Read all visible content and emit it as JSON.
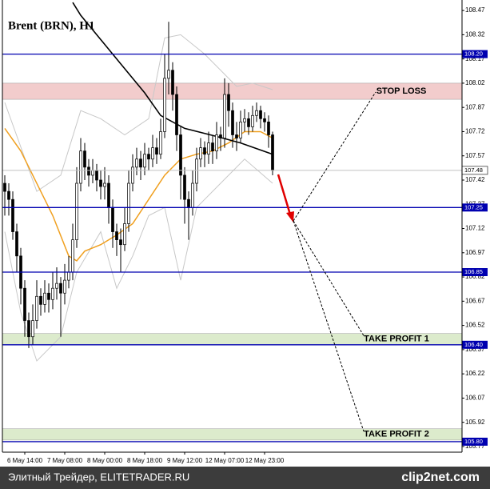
{
  "chart_data": {
    "type": "candlestick",
    "title": "Brent (BRN), H1",
    "categories": [
      null,
      null,
      null,
      null,
      null,
      "6 May 14:00",
      null,
      null,
      null,
      null,
      null,
      null,
      null,
      null,
      null,
      "7 May 08:00",
      null,
      null,
      null,
      null,
      null,
      null,
      null,
      null,
      null,
      "8 May 00:00",
      null,
      null,
      null,
      null,
      null,
      null,
      null,
      null,
      null,
      "8 May 18:00",
      null,
      null,
      null,
      null,
      null,
      null,
      null,
      null,
      null,
      "9 May 12:00",
      null,
      null,
      null,
      null,
      null,
      null,
      null,
      null,
      null,
      "12 May 07:00",
      null,
      null,
      null,
      null,
      null,
      null,
      null,
      null,
      null,
      "12 May 23:00",
      null,
      null
    ],
    "open": [
      107.4,
      107.35,
      107.3,
      107.1,
      106.95,
      106.75,
      106.55,
      106.45,
      106.55,
      106.7,
      106.65,
      106.72,
      106.68,
      106.75,
      106.78,
      106.72,
      106.8,
      106.85,
      107.05,
      107.4,
      107.6,
      107.5,
      107.45,
      107.48,
      107.42,
      107.38,
      107.4,
      107.25,
      107.1,
      107.05,
      107.02,
      107.15,
      107.4,
      107.5,
      107.55,
      107.5,
      107.58,
      107.55,
      107.62,
      107.58,
      107.72,
      108.05,
      108.1,
      107.95,
      107.7,
      107.45,
      107.3,
      107.25,
      107.4,
      107.55,
      107.62,
      107.58,
      107.65,
      107.6,
      107.7,
      107.68,
      107.95,
      107.85,
      107.7,
      107.68,
      107.78,
      107.8,
      107.75,
      107.82,
      107.85,
      107.8,
      107.78,
      107.7
    ],
    "high": [
      107.45,
      107.4,
      107.35,
      107.15,
      107.0,
      106.8,
      106.6,
      106.65,
      106.8,
      106.75,
      106.8,
      106.78,
      106.85,
      106.88,
      106.82,
      106.9,
      106.95,
      107.15,
      107.5,
      107.68,
      107.65,
      107.55,
      107.55,
      107.52,
      107.48,
      107.5,
      107.45,
      107.3,
      107.15,
      107.12,
      107.25,
      107.48,
      107.58,
      107.62,
      107.6,
      107.65,
      107.62,
      107.7,
      107.68,
      107.8,
      108.2,
      108.4,
      108.15,
      108.0,
      107.75,
      107.5,
      107.35,
      107.48,
      107.62,
      107.68,
      107.66,
      107.72,
      107.7,
      107.78,
      107.75,
      108.05,
      108.02,
      107.9,
      107.78,
      107.85,
      107.86,
      107.84,
      107.88,
      107.9,
      107.88,
      107.84,
      107.82,
      107.72
    ],
    "low": [
      107.2,
      107.2,
      107.05,
      106.85,
      106.65,
      106.45,
      106.38,
      106.4,
      106.5,
      106.58,
      106.6,
      106.6,
      106.62,
      106.68,
      106.45,
      106.65,
      106.75,
      106.8,
      107.0,
      107.35,
      107.42,
      107.38,
      107.4,
      107.35,
      107.3,
      107.3,
      107.15,
      107.0,
      106.95,
      106.85,
      106.98,
      107.1,
      107.35,
      107.45,
      107.42,
      107.45,
      107.48,
      107.5,
      107.52,
      107.55,
      107.68,
      107.95,
      107.85,
      107.6,
      107.3,
      107.15,
      107.05,
      107.2,
      107.35,
      107.5,
      107.5,
      107.52,
      107.52,
      107.55,
      107.6,
      107.62,
      107.75,
      107.62,
      107.6,
      107.65,
      107.72,
      107.7,
      107.72,
      107.78,
      107.74,
      107.72,
      107.62,
      107.45
    ],
    "close": [
      107.35,
      107.3,
      107.1,
      106.95,
      106.75,
      106.55,
      106.45,
      106.55,
      106.7,
      106.65,
      106.72,
      106.68,
      106.75,
      106.78,
      106.72,
      106.8,
      106.85,
      107.05,
      107.4,
      107.6,
      107.5,
      107.45,
      107.48,
      107.42,
      107.38,
      107.4,
      107.25,
      107.1,
      107.05,
      107.02,
      107.15,
      107.4,
      107.5,
      107.55,
      107.5,
      107.58,
      107.55,
      107.62,
      107.58,
      107.72,
      108.05,
      108.1,
      107.95,
      107.7,
      107.45,
      107.3,
      107.25,
      107.4,
      107.55,
      107.62,
      107.58,
      107.65,
      107.6,
      107.7,
      107.68,
      107.95,
      107.85,
      107.7,
      107.68,
      107.78,
      107.8,
      107.75,
      107.82,
      107.85,
      107.8,
      107.78,
      107.7,
      107.48
    ],
    "candle_color": "#000000",
    "series": [
      {
        "color": "#c8c8c8",
        "x": [
          0,
          8,
          14,
          19,
          24,
          30,
          36,
          40,
          44,
          50,
          54,
          58,
          62,
          67
        ],
        "values": [
          107.9,
          107.35,
          107.45,
          107.85,
          107.8,
          107.7,
          107.8,
          108.3,
          108.32,
          108.2,
          108.1,
          108.0,
          108.02,
          107.98
        ]
      },
      {
        "color": "#c8c8c8",
        "x": [
          0,
          4,
          8,
          14,
          18,
          24,
          28,
          32,
          36,
          40,
          44,
          48,
          54,
          60,
          67
        ],
        "values": [
          107.1,
          106.6,
          106.3,
          106.45,
          106.85,
          107.1,
          106.75,
          106.95,
          107.2,
          107.25,
          106.8,
          107.25,
          107.4,
          107.55,
          107.4
        ]
      },
      {
        "color": "#f0a020",
        "x": [
          0,
          4,
          8,
          12,
          16,
          18,
          20,
          24,
          28,
          32,
          36,
          40,
          44,
          48,
          52,
          56,
          60,
          64,
          67
        ],
        "values": [
          107.74,
          107.6,
          107.4,
          107.2,
          106.95,
          106.92,
          106.98,
          107.02,
          107.08,
          107.15,
          107.3,
          107.45,
          107.55,
          107.58,
          107.6,
          107.65,
          107.72,
          107.72,
          107.68
        ]
      },
      {
        "color": "#000000",
        "x": [
          17,
          19,
          29,
          35,
          39,
          45,
          53,
          59,
          67
        ],
        "values": [
          108.52,
          108.44,
          108.14,
          107.96,
          107.82,
          107.74,
          107.69,
          107.65,
          107.58
        ]
      }
    ],
    "ylim": [
      105.735,
      108.535
    ],
    "yticks": [
      108.47,
      108.32,
      108.17,
      108.02,
      107.87,
      107.72,
      107.57,
      107.42,
      107.27,
      107.12,
      106.97,
      106.82,
      106.67,
      106.52,
      106.37,
      106.22,
      106.07,
      105.92,
      105.77
    ],
    "levels": [
      {
        "value": 108.2,
        "label": "108.20"
      },
      {
        "value": 107.25,
        "label": "107.25"
      },
      {
        "value": 106.85,
        "label": "106.85"
      },
      {
        "value": 106.4,
        "label": "106.40"
      },
      {
        "value": 105.8,
        "label": "105.80"
      }
    ],
    "level_color": "#0000b0",
    "current_price": {
      "value": 107.48,
      "label": "107.48"
    },
    "zones": [
      {
        "name": "STOP LOSS",
        "from": 107.92,
        "to": 108.02,
        "color": "#f2cccc"
      },
      {
        "name": "TAKE PROFIT 1",
        "from": 106.4,
        "to": 106.47,
        "color": "#dcebcc"
      },
      {
        "name": "TAKE PROFIT 2",
        "from": 105.81,
        "to": 105.88,
        "color": "#dcebcc"
      }
    ]
  },
  "footer": {
    "text": "Элитный Трейдер, ELITETRADER.RU",
    "logo": "clip2net.com"
  }
}
